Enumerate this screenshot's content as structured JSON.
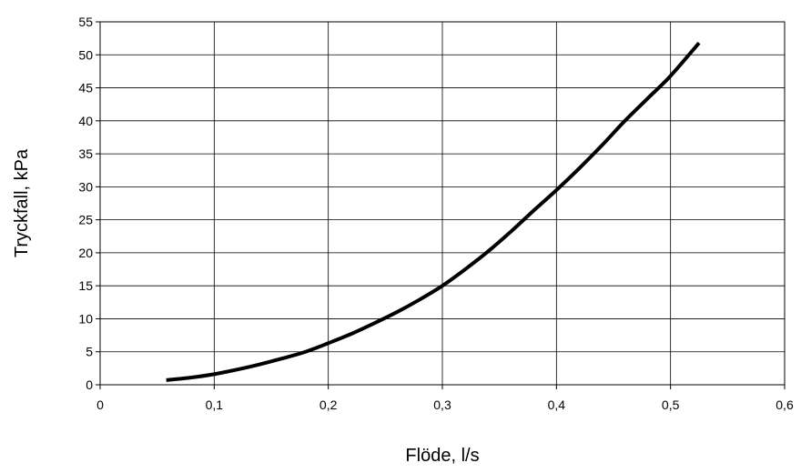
{
  "chart_data": {
    "type": "line",
    "xlabel": "Flöde, l/s",
    "ylabel": "Tryckfall, kPa",
    "xlim": [
      0,
      0.6
    ],
    "ylim": [
      0,
      55
    ],
    "grid": true,
    "x_ticks": [
      0,
      0.1,
      0.2,
      0.3,
      0.4,
      0.5,
      0.6
    ],
    "x_tick_labels": [
      "0",
      "0,1",
      "0,2",
      "0,3",
      "0,4",
      "0,5",
      "0,6"
    ],
    "y_ticks": [
      0,
      5,
      10,
      15,
      20,
      25,
      30,
      35,
      40,
      45,
      50,
      55
    ],
    "y_tick_labels": [
      "0",
      "5",
      "10",
      "15",
      "20",
      "25",
      "30",
      "35",
      "40",
      "45",
      "50",
      "55"
    ],
    "series": [
      {
        "color": "#000000",
        "x": [
          0.058,
          0.08,
          0.1,
          0.12,
          0.14,
          0.16,
          0.18,
          0.2,
          0.22,
          0.24,
          0.26,
          0.28,
          0.3,
          0.32,
          0.34,
          0.36,
          0.38,
          0.4,
          0.42,
          0.44,
          0.46,
          0.48,
          0.5,
          0.525
        ],
        "y": [
          0.7,
          1.1,
          1.6,
          2.3,
          3.1,
          4.0,
          5.0,
          6.3,
          7.7,
          9.3,
          11.0,
          12.9,
          15.0,
          17.5,
          20.2,
          23.2,
          26.4,
          29.5,
          32.8,
          36.3,
          40.0,
          43.4,
          46.8,
          51.8
        ]
      }
    ]
  }
}
